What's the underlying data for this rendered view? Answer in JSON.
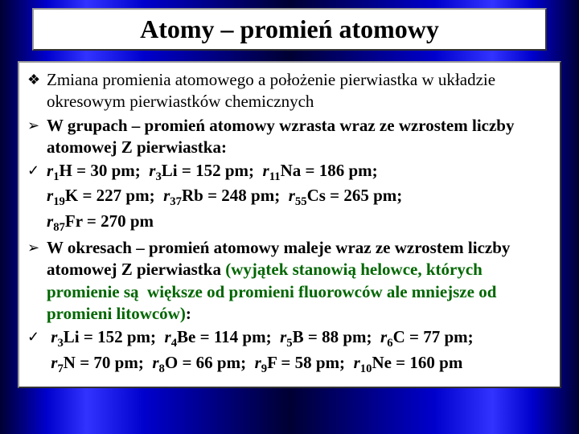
{
  "title": "Atomy – promień atomowy",
  "colors": {
    "background_gradient": [
      "#000033",
      "#0000cc",
      "#3333ff"
    ],
    "box_bg": "#ffffff",
    "text": "#000000",
    "accent_green": "#006600"
  },
  "items": [
    {
      "bullet": "❖",
      "html": "Zmiana promienia atomowego a położenie pierwiastka w układzie okresowym pierwiastków chemicznych"
    },
    {
      "bullet": "➢",
      "html": "<span class='bold'>W grupach – promień atomowy wzrasta wraz ze wzrostem liczby atomowej Z pierwiastka:</span>"
    },
    {
      "bullet": "✓",
      "html": "<span class='bold'><i>r</i><span class='sub'>1</span>H = 30 pm;&nbsp; <i>r</i><span class='sub'>3</span>Li = 152 pm;&nbsp; <i>r</i><span class='sub'>11</span>Na = 186 pm;<br><i>r</i><span class='sub'>19</span>K = 227 pm;&nbsp; <i>r</i><span class='sub'>37</span>Rb = 248 pm;&nbsp; <i>r</i><span class='sub'>55</span>Cs = 265 pm;<br><i>r</i><span class='sub'>87</span>Fr = 270 pm</span>"
    },
    {
      "bullet": "➢",
      "html": "<span class='bold'>W okresach – promień atomowy maleje wraz ze wzrostem liczby atomowej Z pierwiastka <span class='green'>(wyjątek stanowią helowce, których promienie są&nbsp; większe od promieni fluorowców ale mniejsze od promieni litowców)</span>:</span>"
    },
    {
      "bullet": "✓",
      "html": "<span class='bold'>&nbsp;<i>r</i><span class='sub'>3</span>Li = 152 pm;&nbsp; <i>r</i><span class='sub'>4</span>Be = 114 pm;&nbsp; <i>r</i><span class='sub'>5</span>B = 88 pm;&nbsp; <i>r</i><span class='sub'>6</span>C = 77 pm;<br>&nbsp;<i>r</i><span class='sub'>7</span>N = 70 pm;&nbsp; <i>r</i><span class='sub'>8</span>O = 66 pm;&nbsp; <i>r</i><span class='sub'>9</span>F = 58 pm;&nbsp; <i>r</i><span class='sub'>10</span>Ne = 160 pm</span>"
    }
  ]
}
